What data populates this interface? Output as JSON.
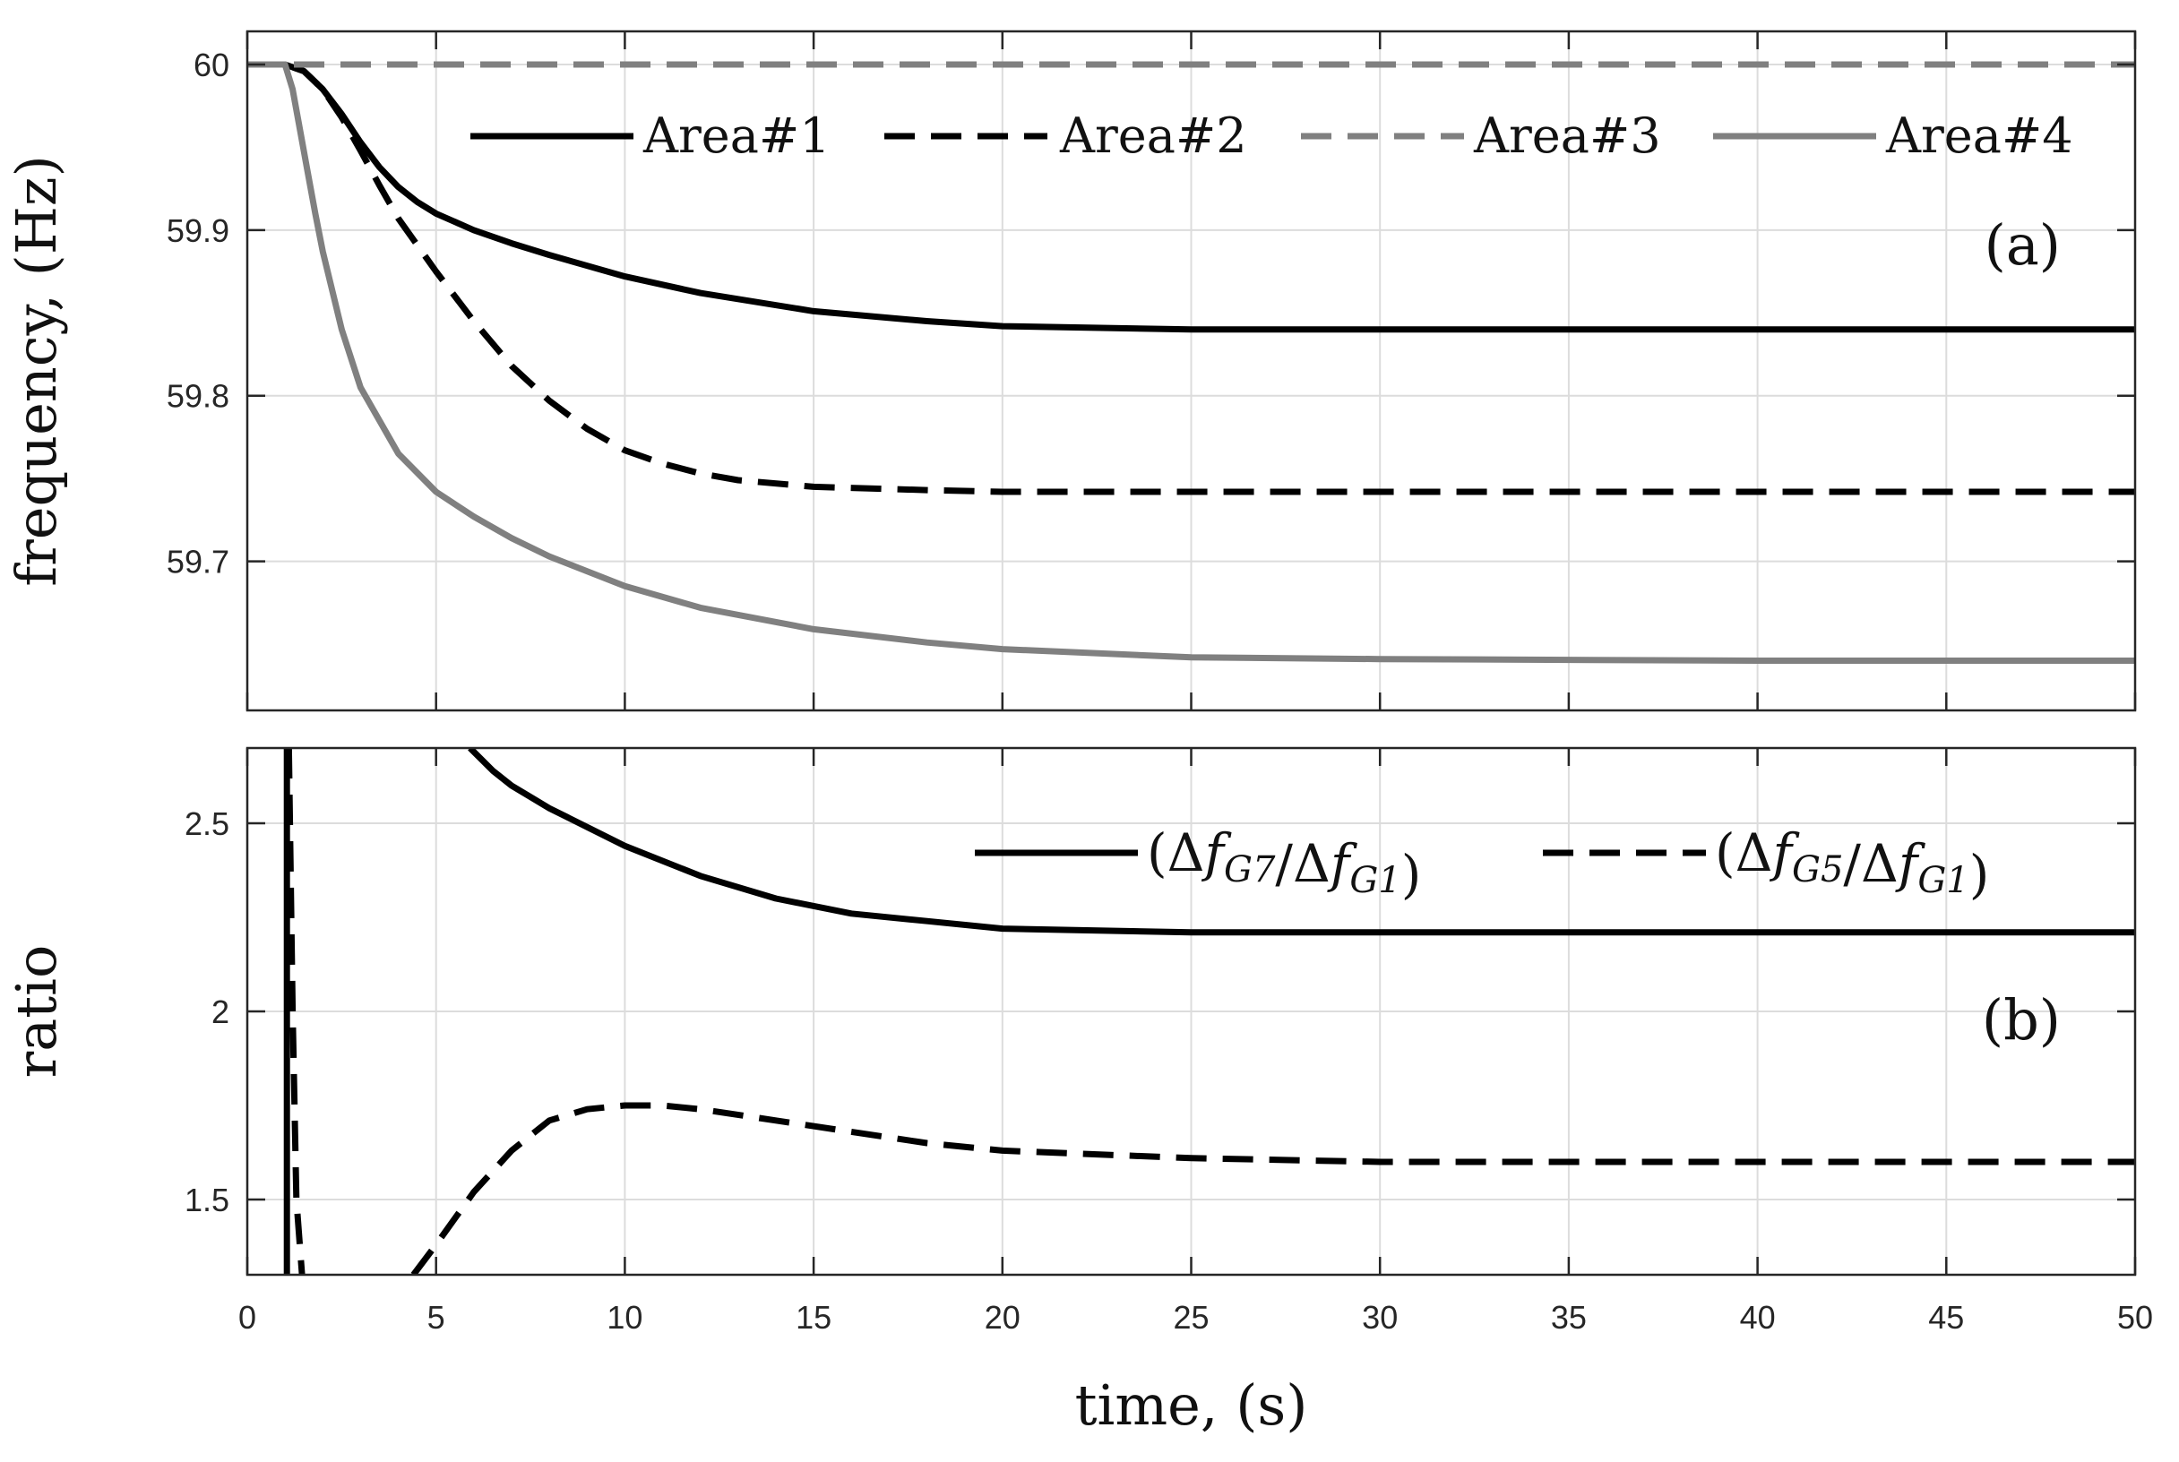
{
  "chart_data": [
    {
      "type": "line",
      "panel_label": "(a)",
      "title": "",
      "xlabel": "",
      "ylabel": "frequency, (Hz)",
      "xlim": [
        0,
        50
      ],
      "ylim": [
        59.61,
        60.02
      ],
      "xticks": [
        0,
        5,
        10,
        15,
        20,
        25,
        30,
        35,
        40,
        45,
        50
      ],
      "yticks": [
        59.7,
        59.8,
        59.9,
        60
      ],
      "ytick_labels": [
        "59.7",
        "59.8",
        "59.9",
        "60"
      ],
      "grid": true,
      "legend_position": "top",
      "series": [
        {
          "name": "Area#1",
          "color": "#000000",
          "style": "solid",
          "x": [
            0,
            1.0,
            1.5,
            2,
            2.5,
            3,
            3.5,
            4,
            4.5,
            5,
            6,
            7,
            8,
            10,
            12,
            15,
            18,
            20,
            25,
            30,
            40,
            50
          ],
          "y": [
            60,
            60,
            59.996,
            59.985,
            59.97,
            59.953,
            59.938,
            59.926,
            59.917,
            59.91,
            59.9,
            59.892,
            59.885,
            59.872,
            59.862,
            59.851,
            59.845,
            59.842,
            59.84,
            59.84,
            59.84,
            59.84
          ]
        },
        {
          "name": "Area#2",
          "color": "#000000",
          "style": "dashed",
          "x": [
            0,
            1.0,
            1.5,
            2,
            2.5,
            3,
            3.5,
            4,
            5,
            6,
            7,
            8,
            9,
            10,
            11,
            12,
            13,
            15,
            18,
            20,
            25,
            30,
            40,
            50
          ],
          "y": [
            60,
            60,
            59.996,
            59.985,
            59.968,
            59.948,
            59.927,
            59.907,
            59.875,
            59.845,
            59.818,
            59.797,
            59.78,
            59.767,
            59.759,
            59.753,
            59.749,
            59.745,
            59.743,
            59.742,
            59.742,
            59.742,
            59.742,
            59.742
          ]
        },
        {
          "name": "Area#3",
          "color": "#808080",
          "style": "dashed",
          "x": [
            0,
            50
          ],
          "y": [
            60,
            60
          ]
        },
        {
          "name": "Area#4",
          "color": "#808080",
          "style": "solid",
          "x": [
            0,
            1.0,
            1.2,
            1.4,
            1.6,
            1.8,
            2,
            2.5,
            3,
            4,
            5,
            6,
            7,
            8,
            10,
            12,
            15,
            18,
            20,
            25,
            30,
            40,
            50
          ],
          "y": [
            60,
            60,
            59.985,
            59.96,
            59.935,
            59.91,
            59.887,
            59.84,
            59.805,
            59.765,
            59.742,
            59.727,
            59.714,
            59.703,
            59.685,
            59.672,
            59.659,
            59.651,
            59.647,
            59.642,
            59.641,
            59.64,
            59.64
          ]
        }
      ]
    },
    {
      "type": "line",
      "panel_label": "(b)",
      "title": "",
      "xlabel": "time, (s)",
      "ylabel": "ratio",
      "xlim": [
        0,
        50
      ],
      "ylim": [
        1.3,
        2.7
      ],
      "xticks": [
        0,
        5,
        10,
        15,
        20,
        25,
        30,
        35,
        40,
        45,
        50
      ],
      "yticks": [
        1.5,
        2,
        2.5
      ],
      "ytick_labels": [
        "1.5",
        "2",
        "2.5"
      ],
      "grid": true,
      "legend_position": "top-right",
      "series": [
        {
          "name": "(Δf_G7/Δf_G1)",
          "color": "#000000",
          "style": "solid",
          "x": [
            1.05,
            1.05,
            5.9,
            6.5,
            7,
            8,
            9,
            10,
            12,
            14,
            16,
            18,
            20,
            25,
            30,
            40,
            50
          ],
          "y": [
            1.3,
            2.7,
            2.7,
            2.64,
            2.6,
            2.54,
            2.49,
            2.44,
            2.36,
            2.3,
            2.26,
            2.24,
            2.22,
            2.21,
            2.21,
            2.21,
            2.21
          ],
          "segments": [
            [
              0,
              1
            ],
            [
              2,
              16
            ]
          ]
        },
        {
          "name": "(Δf_G5/Δf_G1)",
          "color": "#000000",
          "style": "dashed",
          "x": [
            1.1,
            1.2,
            1.3,
            1.45,
            4.4,
            5,
            6,
            7,
            8,
            9,
            10,
            11,
            12,
            14,
            16,
            18,
            20,
            25,
            30,
            40,
            50
          ],
          "y": [
            2.7,
            2.0,
            1.5,
            1.3,
            1.3,
            1.38,
            1.52,
            1.63,
            1.71,
            1.74,
            1.75,
            1.75,
            1.74,
            1.71,
            1.68,
            1.65,
            1.63,
            1.61,
            1.6,
            1.6,
            1.6
          ],
          "segments": [
            [
              0,
              3
            ],
            [
              4,
              20
            ]
          ]
        }
      ]
    }
  ]
}
